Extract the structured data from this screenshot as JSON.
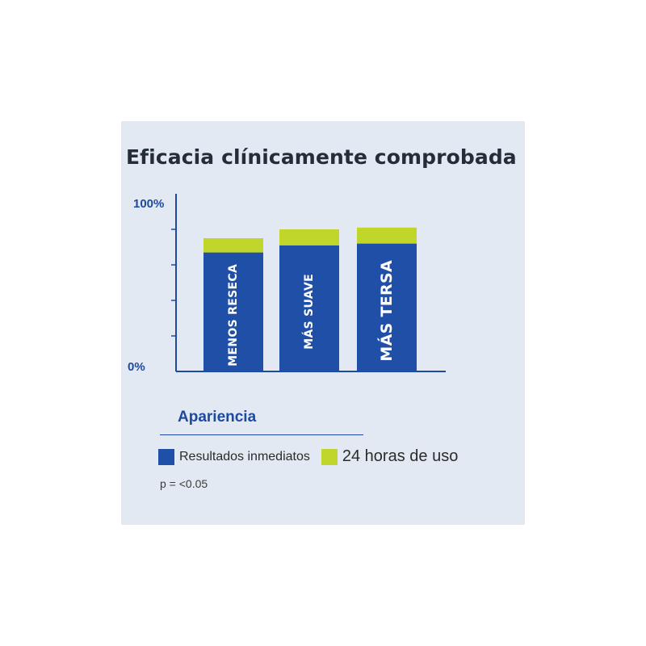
{
  "chart_data": {
    "type": "bar",
    "stacked": true,
    "title": "Eficacia clínicamente comprobada",
    "xlabel": "Apariencia",
    "ylabel": "",
    "ylim": [
      0,
      100
    ],
    "ytick_labels": [
      "0%",
      "100%"
    ],
    "categories": [
      "MENOS RESECA",
      "MÁS SUAVE",
      "MÁS TERSA"
    ],
    "series": [
      {
        "name": "Resultados inmediatos",
        "color": "#1f4fa6",
        "values": [
          67,
          71,
          72
        ]
      },
      {
        "name": "24 horas de uso",
        "color": "#c0d62b",
        "values": [
          8,
          9,
          9
        ]
      }
    ],
    "legend_position": "bottom-left",
    "grid": false,
    "note": "p = <0.05"
  }
}
